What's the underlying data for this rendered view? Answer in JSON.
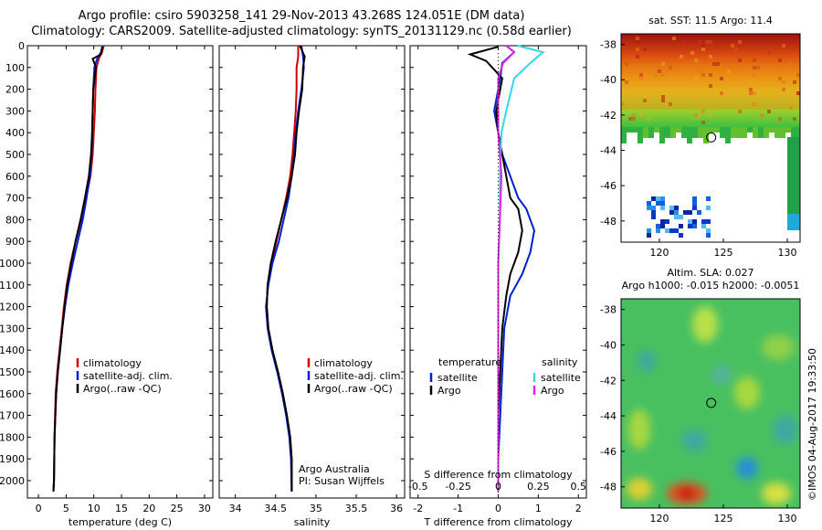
{
  "header": {
    "line1": "Argo profile: csiro 5903258_141 29-Nov-2013 43.268S 124.051E (DM data)",
    "line2": "Climatology: CARS2009. Satellite-adjusted climatology: synTS_20131129.nc (0.58d earlier)"
  },
  "colors": {
    "climatology": "#d00000",
    "satellite": "#0020d0",
    "argo": "#000000",
    "salinity_satellite": "#30d8e8",
    "salinity_argo": "#e020e0"
  },
  "chart_data": [
    {
      "type": "line",
      "title": "",
      "xlabel": "temperature (deg C)",
      "ylabel": "",
      "xlim": [
        -2,
        31.5
      ],
      "ylim": [
        2080,
        0
      ],
      "xticks": [
        0,
        5,
        10,
        15,
        20,
        25,
        30
      ],
      "xtick_labels": [
        "0",
        "5",
        "10",
        "15",
        "20",
        "25",
        "30"
      ],
      "yticks": [
        0,
        100,
        200,
        300,
        400,
        500,
        600,
        700,
        800,
        900,
        1000,
        1100,
        1200,
        1300,
        1400,
        1500,
        1600,
        1700,
        1800,
        1900,
        2000
      ],
      "ytick_labels": [
        "0",
        "100",
        "200",
        "300",
        "400",
        "500",
        "600",
        "700",
        "800",
        "900",
        "1000",
        "1100",
        "1200",
        "1300",
        "1400",
        "1500",
        "1600",
        "1700",
        "1800",
        "1900",
        "2000"
      ],
      "legend": [
        "climatology",
        "satellite-adj. clim.",
        "Argo(..raw -QC)"
      ],
      "legend_placement": "lower-right",
      "series": [
        {
          "name": "climatology",
          "x": [
            11.8,
            11.5,
            10.9,
            10.5,
            10.3,
            10.2,
            10.0,
            9.8,
            9.4,
            8.6,
            7.7,
            6.7,
            5.8,
            5.1,
            4.6,
            4.2,
            3.8,
            3.4,
            3.1,
            2.9,
            2.8,
            2.7
          ],
          "y": [
            0,
            30,
            60,
            100,
            200,
            300,
            400,
            500,
            600,
            700,
            800,
            900,
            1000,
            1100,
            1200,
            1300,
            1400,
            1500,
            1600,
            1800,
            2000,
            2050
          ]
        },
        {
          "name": "satellite-adj. clim.",
          "x": [
            11.6,
            11.3,
            10.6,
            10.1,
            9.9,
            9.8,
            9.7,
            9.6,
            9.3,
            8.7,
            8.0,
            7.1,
            6.2,
            5.4,
            4.8,
            4.3,
            3.9,
            3.5,
            3.2,
            2.9,
            2.8,
            2.7
          ],
          "y": [
            0,
            30,
            60,
            100,
            200,
            300,
            400,
            500,
            600,
            700,
            800,
            900,
            1000,
            1100,
            1200,
            1300,
            1400,
            1500,
            1600,
            1800,
            2000,
            2050
          ]
        },
        {
          "name": "Argo(..raw -QC)",
          "x": [
            11.5,
            11.3,
            9.8,
            10.4,
            9.9,
            9.8,
            9.7,
            9.5,
            9.1,
            8.4,
            7.6,
            6.7,
            5.9,
            5.2,
            4.7,
            4.3,
            3.9,
            3.5,
            3.2,
            2.9,
            2.8,
            2.7
          ],
          "y": [
            5,
            40,
            60,
            100,
            200,
            300,
            400,
            500,
            600,
            700,
            800,
            900,
            1000,
            1100,
            1200,
            1300,
            1400,
            1500,
            1600,
            1800,
            2000,
            2050
          ]
        }
      ]
    },
    {
      "type": "line",
      "title": "",
      "xlabel": "salinity",
      "ylabel": "",
      "xlim": [
        33.8,
        36.1
      ],
      "ylim": [
        2080,
        0
      ],
      "xticks": [
        34,
        34.5,
        35,
        35.5,
        36
      ],
      "xtick_labels": [
        "34",
        "34.5",
        "35",
        "35.5",
        "36"
      ],
      "legend": [
        "climatology",
        "satellite-adj. clim.",
        "Argo(..raw -QC)"
      ],
      "legend_placement": "lower-right",
      "annotation": [
        "Argo Australia",
        "PI: Susan Wijffels"
      ],
      "series": [
        {
          "name": "climatology",
          "x": [
            34.78,
            34.78,
            34.76,
            34.76,
            34.75,
            34.73,
            34.71,
            34.68,
            34.63,
            34.57,
            34.51,
            34.45,
            34.4,
            34.39,
            34.41,
            34.46,
            34.53,
            34.59,
            34.64,
            34.68,
            34.7,
            34.7
          ],
          "y": [
            0,
            50,
            100,
            200,
            300,
            400,
            500,
            600,
            700,
            800,
            900,
            1000,
            1100,
            1200,
            1300,
            1400,
            1500,
            1600,
            1700,
            1800,
            1900,
            2050
          ]
        },
        {
          "name": "satellite-adj. clim.",
          "x": [
            34.82,
            34.84,
            34.85,
            34.82,
            34.78,
            34.75,
            34.73,
            34.7,
            34.66,
            34.6,
            34.54,
            34.46,
            34.41,
            34.38,
            34.4,
            34.45,
            34.52,
            34.58,
            34.63,
            34.67,
            34.69,
            34.7
          ],
          "y": [
            0,
            50,
            100,
            200,
            300,
            400,
            500,
            600,
            700,
            800,
            900,
            1000,
            1100,
            1200,
            1300,
            1400,
            1500,
            1600,
            1700,
            1800,
            1900,
            2050
          ]
        },
        {
          "name": "Argo(..raw -QC)",
          "x": [
            34.8,
            34.86,
            34.84,
            34.83,
            34.79,
            34.76,
            34.74,
            34.7,
            34.64,
            34.57,
            34.5,
            34.44,
            34.4,
            34.39,
            34.41,
            34.46,
            34.53,
            34.59,
            34.64,
            34.68,
            34.7,
            34.7
          ],
          "y": [
            0,
            50,
            100,
            200,
            300,
            400,
            500,
            600,
            700,
            800,
            900,
            1000,
            1100,
            1200,
            1300,
            1400,
            1500,
            1600,
            1700,
            1800,
            1900,
            2050
          ]
        }
      ]
    },
    {
      "type": "line",
      "title": "S difference from climatology",
      "xlabel": "T difference from climatology",
      "ylabel": "",
      "xlim": [
        -2.2,
        2.2
      ],
      "ylim": [
        2080,
        0
      ],
      "xticks": [
        -2,
        -1,
        0,
        1,
        2
      ],
      "xtick_labels": [
        "-2",
        "-1",
        "0",
        "1",
        "2"
      ],
      "secondary_xticks": [
        -0.5,
        -0.25,
        0,
        0.25,
        0.5
      ],
      "secondary_xtick_labels": [
        "-0.5",
        "-0.25",
        "0",
        "0.25",
        "0.5"
      ],
      "secondary_xlim": [
        -0.55,
        0.55
      ],
      "legend_groups": {
        "temperature": [
          "satellite",
          "Argo"
        ],
        "salinity": [
          "satellite",
          "Argo"
        ]
      },
      "legend_placement": "lower-center",
      "series": [
        {
          "name": "temperature satellite",
          "x": [
            0.2,
            0.4,
            0.1,
            0.05,
            -0.1,
            0.0,
            0.1,
            0.3,
            0.5,
            0.7,
            0.9,
            0.8,
            0.6,
            0.3,
            0.15,
            0.1,
            0.05,
            0.0,
            0.0
          ],
          "y": [
            0,
            30,
            80,
            150,
            300,
            400,
            500,
            600,
            700,
            750,
            850,
            950,
            1050,
            1150,
            1300,
            1500,
            1700,
            1900,
            2050
          ]
        },
        {
          "name": "temperature Argo",
          "x": [
            0.0,
            -0.7,
            -0.3,
            0.1,
            -0.05,
            0.0,
            0.1,
            0.2,
            0.3,
            0.5,
            0.6,
            0.5,
            0.3,
            0.2,
            0.1,
            0.05,
            0.0,
            0.0,
            0.0
          ],
          "y": [
            5,
            40,
            70,
            150,
            300,
            400,
            500,
            600,
            700,
            750,
            850,
            950,
            1050,
            1150,
            1300,
            1500,
            1700,
            1900,
            2050
          ]
        },
        {
          "name": "salinity satellite",
          "x": [
            0.12,
            0.28,
            0.2,
            0.1,
            0.05,
            0.02,
            0.01,
            0.01,
            0.0,
            0.0,
            0.0,
            0.0,
            0.0,
            0.0
          ],
          "y": [
            0,
            30,
            80,
            150,
            300,
            400,
            600,
            800,
            1000,
            1200,
            1400,
            1600,
            1800,
            2050
          ]
        },
        {
          "name": "salinity Argo",
          "x": [
            0.05,
            0.1,
            0.03,
            0.0,
            0.0,
            0.0,
            0.02,
            0.01,
            0.0,
            0.0,
            0.0,
            0.0,
            0.0,
            0.0
          ],
          "y": [
            0,
            30,
            80,
            150,
            300,
            400,
            600,
            800,
            1000,
            1200,
            1400,
            1600,
            1800,
            2050
          ]
        }
      ]
    },
    {
      "type": "heatmap",
      "title": "sat. SST: 11.5 Argo: 11.4",
      "xlim": [
        117,
        131
      ],
      "ylim": [
        -49.2,
        -37.4
      ],
      "xticks": [
        120,
        125,
        130
      ],
      "xtick_labels": [
        "120",
        "125",
        "130"
      ],
      "yticks": [
        -38,
        -40,
        -42,
        -44,
        -46,
        -48
      ],
      "ytick_labels": [
        "-38",
        "-40",
        "-42",
        "-44",
        "-46",
        "-48"
      ],
      "marker": {
        "lon": 124.05,
        "lat": -43.27
      }
    },
    {
      "type": "heatmap",
      "title": "Altim. SLA: 0.027",
      "subtitle": "Argo h1000: -0.015 h2000: -0.0051",
      "xlim": [
        117,
        131
      ],
      "ylim": [
        -49.2,
        -37.4
      ],
      "xticks": [
        120,
        125,
        130
      ],
      "xtick_labels": [
        "120",
        "125",
        "130"
      ],
      "yticks": [
        -38,
        -40,
        -42,
        -44,
        -46,
        -48
      ],
      "ytick_labels": [
        "-38",
        "-40",
        "-42",
        "-44",
        "-46",
        "-48"
      ],
      "marker": {
        "lon": 124.05,
        "lat": -43.27
      },
      "side_label": "©IMOS 04-Aug-2017 19:33:50"
    }
  ]
}
